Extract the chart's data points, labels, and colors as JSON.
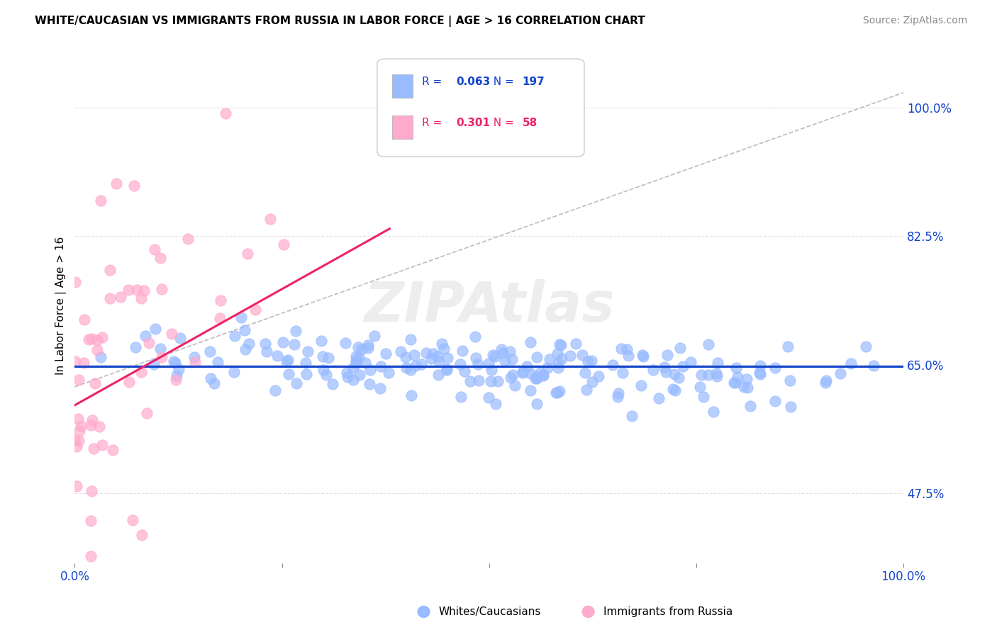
{
  "title": "WHITE/CAUCASIAN VS IMMIGRANTS FROM RUSSIA IN LABOR FORCE | AGE > 16 CORRELATION CHART",
  "source_text": "Source: ZipAtlas.com",
  "ylabel": "In Labor Force | Age > 16",
  "ytick_labels": [
    "47.5%",
    "65.0%",
    "82.5%",
    "100.0%"
  ],
  "ytick_values": [
    0.475,
    0.65,
    0.825,
    1.0
  ],
  "xrange": [
    0.0,
    1.0
  ],
  "yrange": [
    0.38,
    1.08
  ],
  "blue_color": "#99bbff",
  "pink_color": "#ffaacc",
  "blue_line_color": "#1144cc",
  "pink_line_color": "#ee2266",
  "diag_color": "#bbbbbb",
  "legend_R_blue": "0.063",
  "legend_N_blue": "197",
  "legend_R_pink": "0.301",
  "legend_N_pink": "58",
  "watermark": "ZIPAtlas",
  "blue_N": 197,
  "pink_N": 58,
  "background_color": "#ffffff",
  "grid_color": "#e0e0e0",
  "blue_line_y0": 0.648,
  "blue_line_y1": 0.648,
  "pink_line_x0": 0.0,
  "pink_line_x1": 0.38,
  "pink_line_y0": 0.595,
  "pink_line_y1": 0.835
}
